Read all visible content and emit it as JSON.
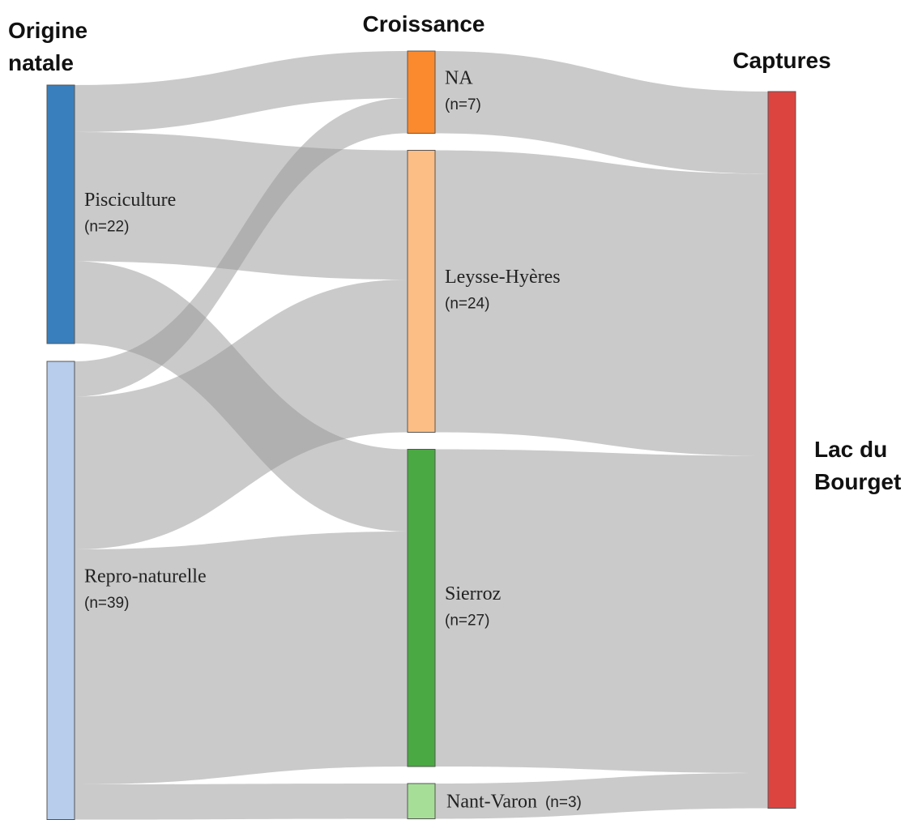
{
  "chart_data": {
    "type": "sankey",
    "columns": [
      {
        "title": "Origine natale",
        "nodes": [
          {
            "name": "Pisciculture",
            "value": 22,
            "value_label": "(n=22)",
            "color": "#3a7fbd"
          },
          {
            "name": "Repro-naturelle",
            "value": 39,
            "value_label": "(n=39)",
            "color": "#b7cdeb"
          }
        ]
      },
      {
        "title": "Croissance",
        "nodes": [
          {
            "name": "NA",
            "value": 7,
            "value_label": "(n=7)",
            "color": "#fb8a2e"
          },
          {
            "name": "Leysse-Hyères",
            "value": 24,
            "value_label": "(n=24)",
            "color": "#fdbe85"
          },
          {
            "name": "Sierroz",
            "value": 27,
            "value_label": "(n=27)",
            "color": "#4aa943"
          },
          {
            "name": "Nant-Varon",
            "value": 3,
            "value_label": "(n=3)",
            "color": "#a6de98"
          }
        ]
      },
      {
        "title": "Captures",
        "nodes": [
          {
            "name": "Lac du Bourget",
            "value": 61,
            "color": "#dc4440"
          }
        ]
      }
    ],
    "links": [
      {
        "source": "Pisciculture",
        "target": "NA",
        "value": 4
      },
      {
        "source": "Pisciculture",
        "target": "Leysse-Hyères",
        "value": 11
      },
      {
        "source": "Pisciculture",
        "target": "Sierroz",
        "value": 7
      },
      {
        "source": "Repro-naturelle",
        "target": "NA",
        "value": 3
      },
      {
        "source": "Repro-naturelle",
        "target": "Leysse-Hyères",
        "value": 13
      },
      {
        "source": "Repro-naturelle",
        "target": "Sierroz",
        "value": 20
      },
      {
        "source": "Repro-naturelle",
        "target": "Nant-Varon",
        "value": 3
      },
      {
        "source": "NA",
        "target": "Lac du Bourget",
        "value": 7
      },
      {
        "source": "Leysse-Hyères",
        "target": "Lac du Bourget",
        "value": 24
      },
      {
        "source": "Sierroz",
        "target": "Lac du Bourget",
        "value": 27
      },
      {
        "source": "Nant-Varon",
        "target": "Lac du Bourget",
        "value": 3
      }
    ]
  }
}
